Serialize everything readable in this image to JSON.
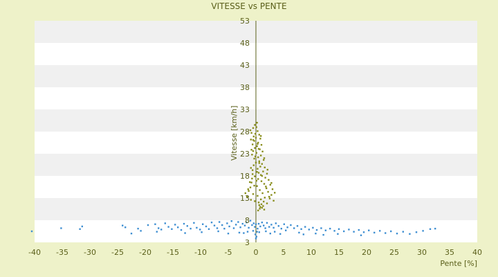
{
  "chart_data": {
    "type": "scatter",
    "title": "VITESSE vs PENTE",
    "xlabel": "Pente [%]",
    "ylabel": "Vitesse [km/h]",
    "xlim": [
      -40,
      40
    ],
    "ylim": [
      3,
      53
    ],
    "xticks": [
      -40,
      -35,
      -30,
      -25,
      -20,
      -15,
      -10,
      -5,
      0,
      5,
      10,
      15,
      20,
      25,
      30,
      35,
      40
    ],
    "yticks": [
      3,
      8,
      13,
      18,
      23,
      28,
      33,
      38,
      43,
      48,
      53
    ],
    "grid": "horizontal banded",
    "legend": "none",
    "colors": {
      "background": "#eef2c9",
      "plot_band_light": "#ffffff",
      "plot_band_dark": "#f0f0f0",
      "text": "#5a5f1a",
      "zero_axis": "#5a5f1a",
      "series_olive": "#8a8f1e",
      "series_blue": "#3f8fd2"
    },
    "series": [
      {
        "color": "#8a8f1e",
        "points": [
          [
            -0.2,
            29.5
          ],
          [
            -0.5,
            28.8
          ],
          [
            0.1,
            29.0
          ],
          [
            -0.8,
            27.7
          ],
          [
            0.3,
            28.1
          ],
          [
            -0.1,
            27.5
          ],
          [
            0.6,
            27.3
          ],
          [
            -0.4,
            26.9
          ],
          [
            0.0,
            26.6
          ],
          [
            -0.9,
            26.2
          ],
          [
            0.8,
            26.4
          ],
          [
            -0.3,
            25.9
          ],
          [
            0.4,
            25.5
          ],
          [
            -0.6,
            25.1
          ],
          [
            1.0,
            25.0
          ],
          [
            0.2,
            24.7
          ],
          [
            -0.2,
            24.3
          ],
          [
            0.7,
            24.0
          ],
          [
            -0.5,
            23.6
          ],
          [
            1.2,
            23.5
          ],
          [
            0.1,
            23.2
          ],
          [
            -0.7,
            22.8
          ],
          [
            0.9,
            22.6
          ],
          [
            0.4,
            22.2
          ],
          [
            -0.3,
            21.9
          ],
          [
            1.4,
            21.6
          ],
          [
            0.6,
            21.3
          ],
          [
            0.0,
            21.0
          ],
          [
            1.1,
            20.7
          ],
          [
            -0.4,
            20.4
          ],
          [
            0.8,
            20.1
          ],
          [
            1.6,
            19.9
          ],
          [
            0.3,
            19.6
          ],
          [
            -0.6,
            19.3
          ],
          [
            1.3,
            19.0
          ],
          [
            0.5,
            18.7
          ],
          [
            2.0,
            18.5
          ],
          [
            0.9,
            18.2
          ],
          [
            -0.2,
            17.9
          ],
          [
            1.7,
            17.6
          ],
          [
            0.4,
            17.3
          ],
          [
            2.3,
            17.1
          ],
          [
            1.0,
            16.8
          ],
          [
            -0.8,
            16.5
          ],
          [
            1.5,
            16.2
          ],
          [
            2.6,
            16.0
          ],
          [
            0.2,
            15.7
          ],
          [
            -1.0,
            15.4
          ],
          [
            1.9,
            15.2
          ],
          [
            3.0,
            15.0
          ],
          [
            0.7,
            14.8
          ],
          [
            -1.3,
            14.6
          ],
          [
            2.2,
            14.4
          ],
          [
            1.2,
            14.1
          ],
          [
            -0.5,
            13.9
          ],
          [
            2.8,
            13.7
          ],
          [
            0.3,
            13.5
          ],
          [
            -1.6,
            13.3
          ],
          [
            1.6,
            13.1
          ],
          [
            2.5,
            12.9
          ],
          [
            0.9,
            12.7
          ],
          [
            -0.9,
            12.6
          ],
          [
            3.2,
            12.4
          ],
          [
            1.4,
            12.2
          ],
          [
            0.5,
            12.0
          ],
          [
            2.0,
            11.8
          ],
          [
            1.0,
            11.6
          ],
          [
            0.6,
            11.4
          ],
          [
            1.3,
            11.2
          ],
          [
            0.8,
            11.0
          ],
          [
            1.1,
            10.8
          ],
          [
            0.7,
            10.6
          ],
          [
            1.5,
            10.4
          ],
          [
            0.4,
            10.2
          ],
          [
            -0.3,
            15.8
          ],
          [
            -1.1,
            16.6
          ],
          [
            -0.7,
            17.4
          ],
          [
            0.2,
            18.9
          ],
          [
            -0.9,
            19.8
          ],
          [
            0.6,
            20.9
          ],
          [
            -0.1,
            22.4
          ],
          [
            1.5,
            22.0
          ],
          [
            -0.8,
            23.9
          ],
          [
            0.3,
            25.2
          ],
          [
            -0.5,
            26.1
          ],
          [
            0.9,
            27.0
          ],
          [
            -1.0,
            28.3
          ],
          [
            0.2,
            30.0
          ],
          [
            2.8,
            16.4
          ],
          [
            3.4,
            14.2
          ],
          [
            -1.9,
            14.1
          ],
          [
            -0.2,
            12.3
          ],
          [
            2.4,
            13.3
          ],
          [
            1.8,
            15.6
          ],
          [
            -1.4,
            15.0
          ],
          [
            0.1,
            16.9
          ],
          [
            1.1,
            18.0
          ],
          [
            -0.6,
            18.4
          ],
          [
            2.1,
            19.4
          ],
          [
            0.5,
            24.1
          ]
        ]
      },
      {
        "color": "#3f8fd2",
        "points": [
          [
            -40.5,
            5.5
          ],
          [
            -35.2,
            6.2
          ],
          [
            -31.8,
            6.0
          ],
          [
            -31.4,
            6.6
          ],
          [
            -24.1,
            6.8
          ],
          [
            -23.6,
            6.4
          ],
          [
            -21.3,
            6.1
          ],
          [
            -20.8,
            5.6
          ],
          [
            -19.5,
            6.9
          ],
          [
            -18.2,
            7.1
          ],
          [
            -17.6,
            6.2
          ],
          [
            -17.1,
            5.9
          ],
          [
            -16.4,
            7.3
          ],
          [
            -15.8,
            6.5
          ],
          [
            -15.2,
            6.0
          ],
          [
            -14.6,
            7.0
          ],
          [
            -14.1,
            6.4
          ],
          [
            -13.5,
            5.8
          ],
          [
            -13.0,
            7.2
          ],
          [
            -12.4,
            6.7
          ],
          [
            -11.8,
            6.1
          ],
          [
            -11.2,
            7.4
          ],
          [
            -10.7,
            6.3
          ],
          [
            -10.1,
            5.9
          ],
          [
            -9.6,
            7.1
          ],
          [
            -9.0,
            6.6
          ],
          [
            -8.5,
            6.0
          ],
          [
            -8.0,
            7.5
          ],
          [
            -7.5,
            6.8
          ],
          [
            -7.0,
            6.2
          ],
          [
            -6.6,
            7.6
          ],
          [
            -6.1,
            6.9
          ],
          [
            -5.7,
            6.1
          ],
          [
            -5.2,
            7.3
          ],
          [
            -4.8,
            6.6
          ],
          [
            -4.4,
            7.8
          ],
          [
            -4.0,
            6.2
          ],
          [
            -3.6,
            7.0
          ],
          [
            -3.2,
            7.6
          ],
          [
            -2.8,
            6.4
          ],
          [
            -2.4,
            7.2
          ],
          [
            -2.0,
            6.8
          ],
          [
            -1.7,
            7.5
          ],
          [
            -1.3,
            6.3
          ],
          [
            -1.0,
            7.9
          ],
          [
            -0.7,
            6.9
          ],
          [
            -0.4,
            7.3
          ],
          [
            -0.2,
            6.5
          ],
          [
            0.0,
            7.1
          ],
          [
            0.2,
            5.4
          ],
          [
            -0.1,
            4.8
          ],
          [
            0.1,
            4.3
          ],
          [
            0.0,
            3.9
          ],
          [
            0.3,
            6.1
          ],
          [
            0.5,
            7.2
          ],
          [
            0.8,
            6.6
          ],
          [
            1.1,
            7.5
          ],
          [
            1.4,
            6.8
          ],
          [
            1.7,
            6.2
          ],
          [
            2.0,
            7.4
          ],
          [
            2.4,
            6.5
          ],
          [
            2.8,
            7.0
          ],
          [
            3.2,
            6.3
          ],
          [
            3.6,
            7.3
          ],
          [
            4.1,
            6.7
          ],
          [
            4.6,
            6.1
          ],
          [
            5.1,
            7.1
          ],
          [
            5.7,
            6.4
          ],
          [
            6.3,
            6.9
          ],
          [
            6.9,
            6.2
          ],
          [
            7.5,
            6.7
          ],
          [
            8.2,
            6.0
          ],
          [
            8.9,
            6.5
          ],
          [
            9.6,
            5.9
          ],
          [
            10.3,
            6.3
          ],
          [
            11.0,
            5.8
          ],
          [
            11.8,
            6.2
          ],
          [
            12.6,
            5.7
          ],
          [
            13.4,
            6.1
          ],
          [
            14.2,
            5.6
          ],
          [
            15.0,
            6.0
          ],
          [
            15.9,
            5.5
          ],
          [
            16.8,
            5.9
          ],
          [
            17.7,
            5.4
          ],
          [
            18.6,
            5.8
          ],
          [
            19.5,
            5.3
          ],
          [
            20.4,
            5.7
          ],
          [
            21.4,
            5.2
          ],
          [
            22.4,
            5.6
          ],
          [
            23.4,
            5.1
          ],
          [
            24.4,
            5.5
          ],
          [
            25.5,
            5.0
          ],
          [
            26.6,
            5.4
          ],
          [
            27.8,
            4.9
          ],
          [
            29.0,
            5.3
          ],
          [
            30.2,
            5.6
          ],
          [
            31.5,
            6.0
          ],
          [
            32.4,
            6.1
          ],
          [
            -17.9,
            5.4
          ],
          [
            -6.8,
            5.5
          ],
          [
            -3.0,
            5.2
          ],
          [
            -1.5,
            5.4
          ],
          [
            -0.5,
            5.6
          ],
          [
            0.6,
            5.3
          ],
          [
            1.8,
            5.5
          ],
          [
            3.4,
            5.4
          ],
          [
            5.4,
            5.7
          ],
          [
            7.8,
            5.2
          ],
          [
            10.8,
            5.0
          ],
          [
            14.8,
            4.9
          ],
          [
            -12.8,
            5.1
          ],
          [
            -9.8,
            5.3
          ],
          [
            -5.0,
            5.0
          ],
          [
            -2.2,
            5.1
          ],
          [
            2.6,
            5.0
          ],
          [
            4.4,
            4.9
          ],
          [
            8.6,
            4.8
          ],
          [
            12.2,
            4.7
          ],
          [
            19.0,
            4.6
          ],
          [
            -22.5,
            5.0
          ]
        ]
      }
    ]
  }
}
